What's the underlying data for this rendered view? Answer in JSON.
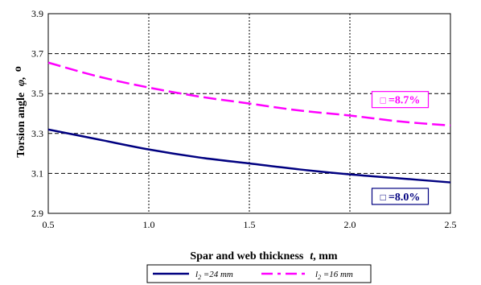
{
  "chart_data": {
    "type": "line",
    "xlabel": "Spar and web thickness",
    "xlabel_symbol": "t",
    "xlabel_unit": ", mm",
    "ylabel": "Torsion angle",
    "ylabel_symbol": "φ,",
    "ylabel_unit": "o",
    "xlim": [
      0.5,
      2.5
    ],
    "ylim": [
      2.9,
      3.9
    ],
    "xticks": [
      "0.5",
      "1.0",
      "1.5",
      "2.0",
      "2.5"
    ],
    "yticks": [
      "2.9",
      "3.1",
      "3.3",
      "3.5",
      "3.7",
      "3.9"
    ],
    "grid": "x dotted, y dashed",
    "legend_position": "bottom",
    "series": [
      {
        "name": "l2 =24 mm",
        "color": "#000080",
        "style": "solid",
        "x": [
          0.5,
          0.75,
          1.0,
          1.25,
          1.5,
          1.75,
          2.0,
          2.25,
          2.5
        ],
        "values": [
          3.32,
          3.27,
          3.22,
          3.18,
          3.15,
          3.12,
          3.095,
          3.075,
          3.055
        ]
      },
      {
        "name": "l2 =16 mm",
        "color": "#FF00FF",
        "style": "dashed",
        "x": [
          0.5,
          0.75,
          1.0,
          1.25,
          1.5,
          1.75,
          2.0,
          2.25,
          2.5
        ],
        "values": [
          3.655,
          3.585,
          3.53,
          3.485,
          3.45,
          3.415,
          3.39,
          3.36,
          3.34
        ]
      }
    ],
    "annotations": [
      {
        "text": "=8.7%",
        "prefix_glyph": "□",
        "color": "#FF00FF",
        "x": 2.25,
        "y": 3.47
      },
      {
        "text": "=8.0%",
        "prefix_glyph": "□",
        "color": "#000080",
        "x": 2.25,
        "y": 2.985
      }
    ],
    "legend": {
      "items": [
        {
          "label_main": "l",
          "label_sub": "2",
          "label_rest": " =24 mm"
        },
        {
          "label_main": "l",
          "label_sub": "2",
          "label_rest": " =16 mm"
        }
      ]
    }
  }
}
